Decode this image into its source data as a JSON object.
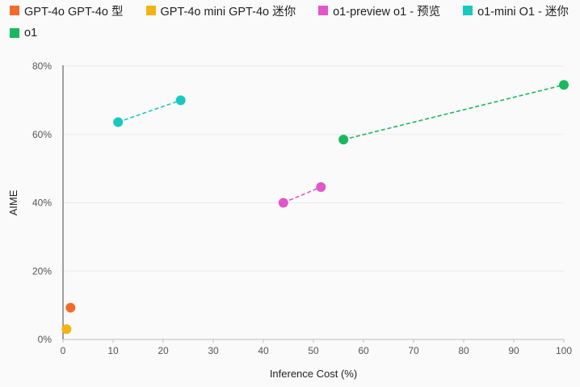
{
  "chart_data": {
    "type": "scatter",
    "title": "",
    "xlabel": "Inference Cost (%)",
    "ylabel": "AIME",
    "xlim": [
      0,
      100
    ],
    "ylim": [
      0,
      80
    ],
    "x_ticks": [
      0,
      10,
      20,
      30,
      40,
      50,
      60,
      70,
      80,
      90,
      100
    ],
    "y_ticks": [
      0,
      20,
      40,
      60,
      80
    ],
    "y_tick_suffix": "%",
    "grid": "horizontal",
    "legend_position": "top",
    "series": [
      {
        "name": "GPT-4o GPT-4o 型",
        "color": "#f26b2b",
        "connected": false,
        "points": [
          {
            "x": 1.5,
            "y": 9.3
          }
        ]
      },
      {
        "name": "GPT-4o mini GPT-4o 迷你",
        "color": "#f5b213",
        "connected": false,
        "points": [
          {
            "x": 0.7,
            "y": 3.0
          }
        ]
      },
      {
        "name": "o1-preview o1 - 预览",
        "color": "#e356c8",
        "connected": true,
        "points": [
          {
            "x": 44.0,
            "y": 40.0
          },
          {
            "x": 51.5,
            "y": 44.6
          }
        ]
      },
      {
        "name": "o1-mini O1 - 迷你",
        "color": "#19c9bf",
        "connected": true,
        "points": [
          {
            "x": 11.0,
            "y": 63.6
          },
          {
            "x": 23.5,
            "y": 70.0
          }
        ]
      },
      {
        "name": "o1",
        "color": "#1ab85c",
        "connected": true,
        "points": [
          {
            "x": 56.0,
            "y": 58.5
          },
          {
            "x": 100,
            "y": 74.5
          }
        ]
      }
    ]
  }
}
